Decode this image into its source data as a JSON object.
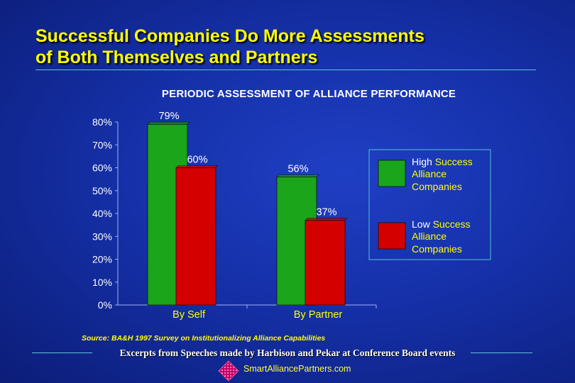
{
  "slide": {
    "title_line1": "Successful Companies Do More Assessments",
    "title_line2": "of Both Themselves and Partners",
    "source": "Source:  BA&H 1997 Survey on Institutionalizing Alliance Capabilities",
    "footer": "Excerpts from Speeches made by Harbison and Pekar at Conference Board events",
    "website": "SmartAlliancePartners.com"
  },
  "colors": {
    "title": "#ffff00",
    "accent_line": "#5fc3d8",
    "high_success": "#1aa51a",
    "low_success": "#d40000"
  },
  "icons": {
    "logo": "diamond-logo-icon"
  },
  "chart_data": {
    "type": "bar",
    "title": "PERIODIC ASSESSMENT OF ALLIANCE PERFORMANCE",
    "categories": [
      "By Self",
      "By Partner"
    ],
    "series": [
      {
        "name": [
          "High ",
          "Success",
          "Alliance",
          "Companies"
        ],
        "values": [
          79,
          56
        ],
        "color": "#1aa51a",
        "data_labels": [
          "79%",
          "56%"
        ]
      },
      {
        "name": [
          "Low ",
          "Success",
          "Alliance",
          "Companies"
        ],
        "values": [
          60,
          37
        ],
        "color": "#d40000",
        "data_labels": [
          "60%",
          "37%"
        ]
      }
    ],
    "ylim": [
      0,
      80
    ],
    "yticks": [
      "0%",
      "10%",
      "20%",
      "30%",
      "40%",
      "50%",
      "60%",
      "70%",
      "80%"
    ],
    "xlabel": "",
    "ylabel": "",
    "legend": "right",
    "grid": false
  }
}
